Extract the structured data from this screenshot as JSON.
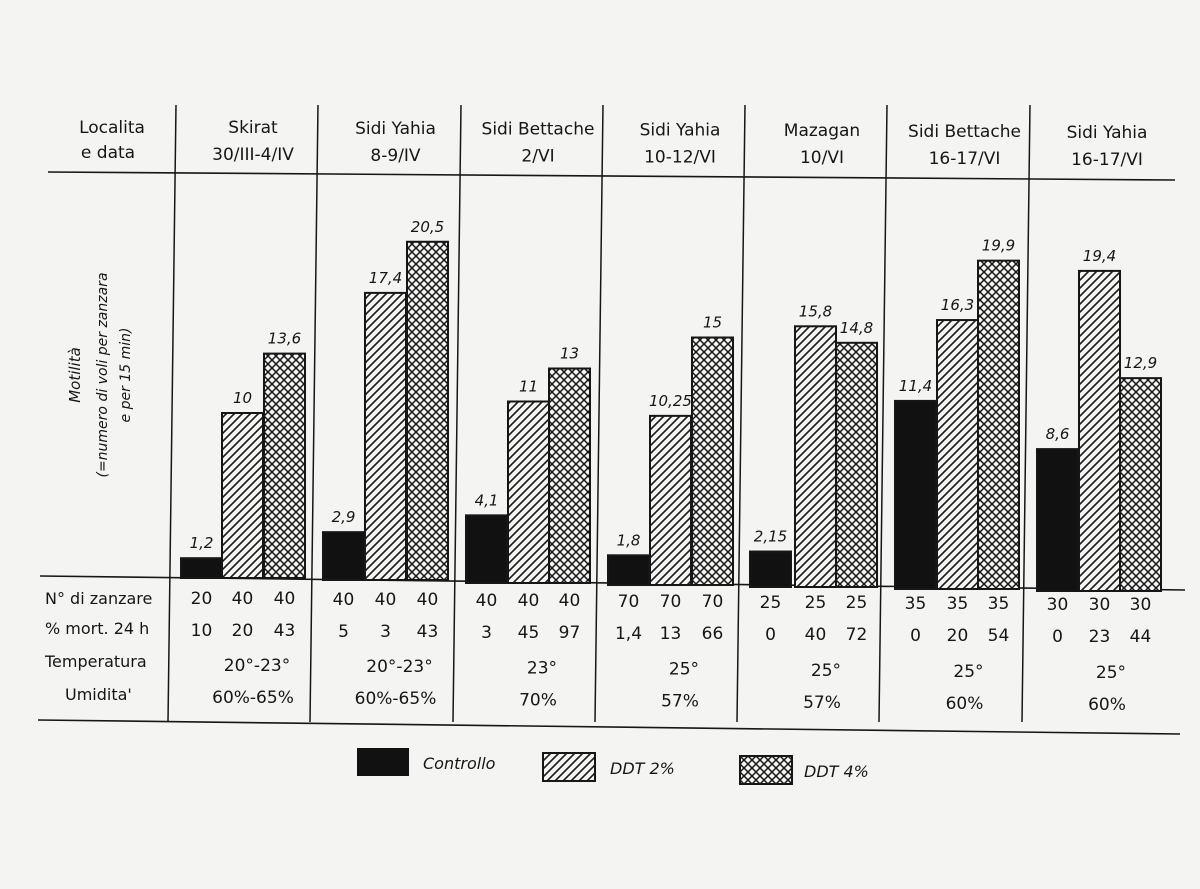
{
  "chart_data": {
    "type": "bar",
    "row_header": [
      "Localita",
      "e data"
    ],
    "ylabel": [
      "Motilità",
      "(=numero di voli per zanzara",
      "e per 15 min)"
    ],
    "categories": [
      {
        "place": "Skirat",
        "date": "30/III-4/IV"
      },
      {
        "place": "Sidi Yahia",
        "date": "8-9/IV"
      },
      {
        "place": "Sidi Bettache",
        "date": "2/VI"
      },
      {
        "place": "Sidi Yahia",
        "date": "10-12/VI"
      },
      {
        "place": "Mazagan",
        "date": "10/VI"
      },
      {
        "place": "Sidi Bettache",
        "date": "16-17/VI"
      },
      {
        "place": "Sidi Yahia",
        "date": "16-17/VI"
      }
    ],
    "series": [
      {
        "name": "Controllo",
        "fill": "solid",
        "values": [
          1.2,
          2.9,
          4.1,
          1.8,
          2.15,
          11.4,
          8.6
        ],
        "labels": [
          "1,2",
          "2,9",
          "4,1",
          "1,8",
          "2,15",
          "11,4",
          "8,6"
        ]
      },
      {
        "name": "DDT 2%",
        "fill": "hatch",
        "values": [
          10,
          17.4,
          11,
          10.25,
          15.8,
          16.3,
          19.4
        ],
        "labels": [
          "10",
          "17,4",
          "11",
          "10,25",
          "15,8",
          "16,3",
          "19,4"
        ]
      },
      {
        "name": "DDT 4%",
        "fill": "crosshatch",
        "values": [
          13.6,
          20.5,
          13,
          15,
          14.8,
          19.9,
          12.9
        ],
        "labels": [
          "13,6",
          "20,5",
          "13",
          "15",
          "14,8",
          "19,9",
          "12,9"
        ]
      }
    ],
    "ylim": [
      0,
      21
    ],
    "grid": false,
    "legend_position": "bottom",
    "table": {
      "row_labels": [
        "N° di zanzare",
        "% mort. 24 h",
        "Temperatura",
        "Umidita'"
      ],
      "zanzare": [
        [
          "20",
          "40",
          "40"
        ],
        [
          "40",
          "40",
          "40"
        ],
        [
          "40",
          "40",
          "40"
        ],
        [
          "70",
          "70",
          "70"
        ],
        [
          "25",
          "25",
          "25"
        ],
        [
          "35",
          "35",
          "35"
        ],
        [
          "30",
          "30",
          "30"
        ]
      ],
      "mortalita": [
        [
          "10",
          "20",
          "43"
        ],
        [
          "5",
          "3",
          "43"
        ],
        [
          "3",
          "45",
          "97"
        ],
        [
          "1,4",
          "13",
          "66"
        ],
        [
          "0",
          "40",
          "72"
        ],
        [
          "0",
          "20",
          "54"
        ],
        [
          "0",
          "23",
          "44"
        ]
      ],
      "temperatura": [
        "20°-23°",
        "20°-23°",
        "23°",
        "25°",
        "25°",
        "25°",
        "25°"
      ],
      "umidita": [
        "60%-65%",
        "60%-65%",
        "70%",
        "57%",
        "57%",
        "60%",
        "60%"
      ]
    }
  }
}
